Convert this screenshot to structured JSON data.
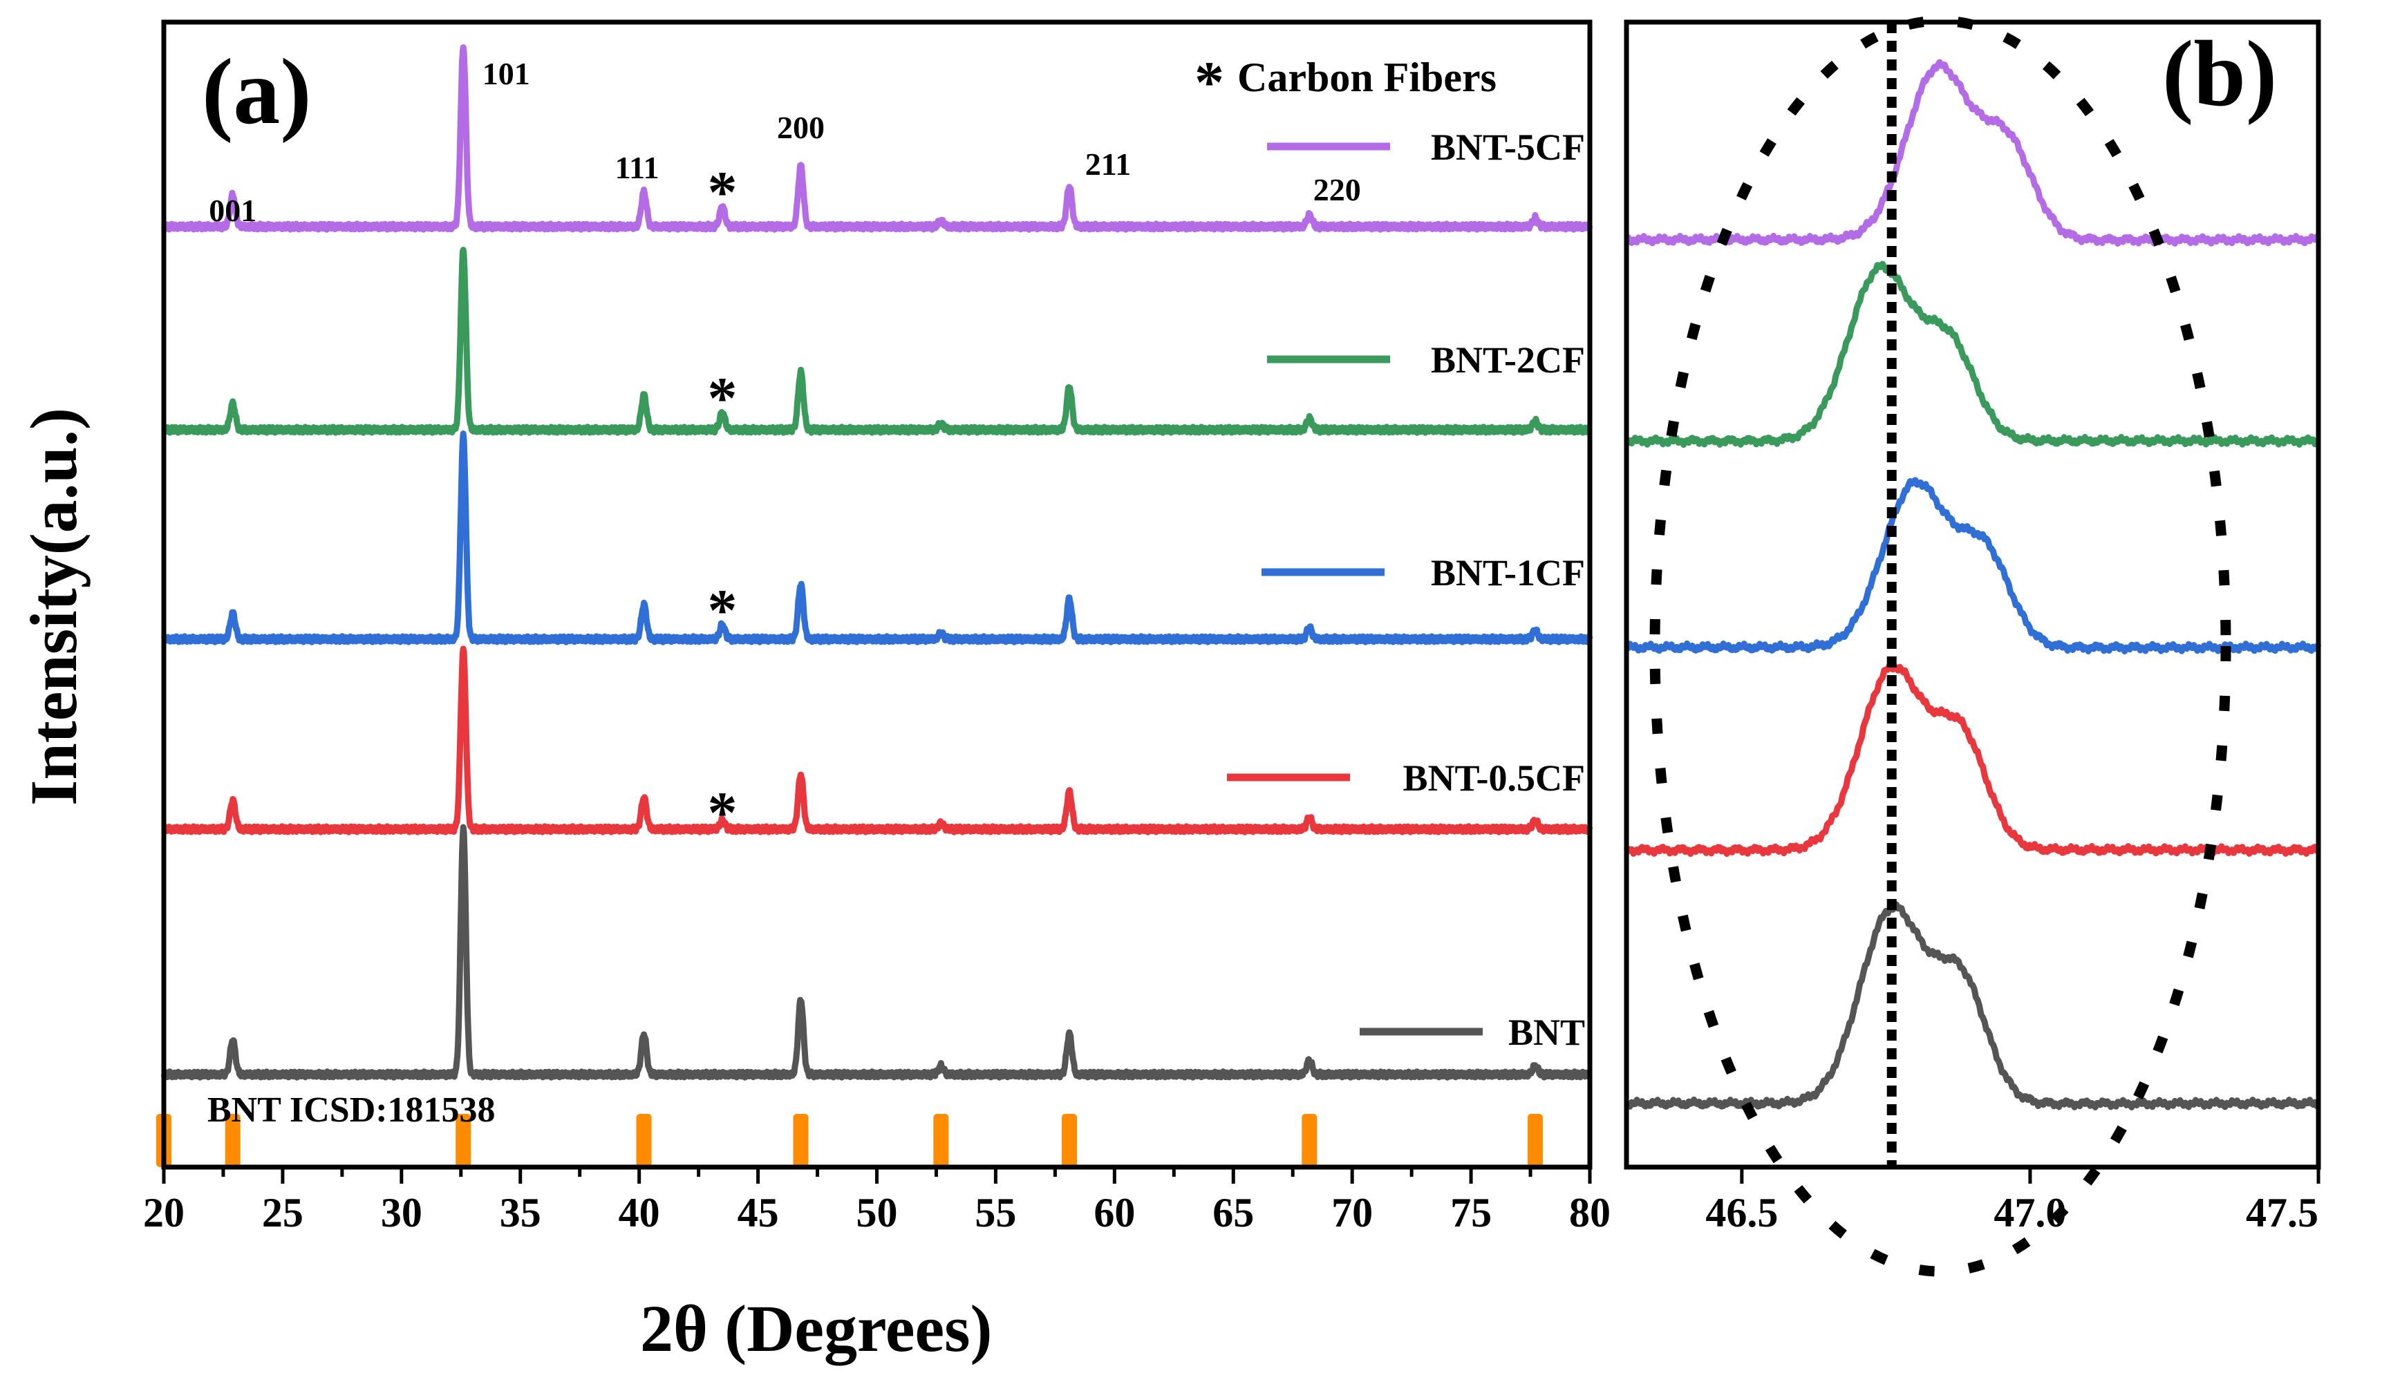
{
  "chart_data": [
    {
      "panel": "(a)",
      "type": "line",
      "xlabel": "2θ (Degrees)",
      "ylabel": "Intensity(a.u.)",
      "xlim": [
        20,
        80
      ],
      "xticks": [
        "20",
        "25",
        "30",
        "35",
        "40",
        "45",
        "50",
        "55",
        "60",
        "65",
        "70",
        "75",
        "80"
      ],
      "legend_title": "Carbon Fibers",
      "legend_marker": "*",
      "reference_label": "BNT ICSD:181538",
      "reference_color": "#ff8c00",
      "reference_peaks": [
        20.0,
        22.9,
        32.6,
        40.2,
        46.8,
        52.7,
        58.1,
        68.2,
        77.7
      ],
      "peak_labels": [
        {
          "label": "001",
          "x": 22.9
        },
        {
          "label": "101",
          "x": 32.6
        },
        {
          "label": "111",
          "x": 40.2
        },
        {
          "label": "200",
          "x": 46.8
        },
        {
          "label": "211",
          "x": 58.1
        },
        {
          "label": "220",
          "x": 68.2
        }
      ],
      "star_marker": "*",
      "star_positions_deg": [
        43.5
      ],
      "series": [
        {
          "name": "BNT",
          "color": "#555555",
          "baseline": 0.0,
          "peaks": [
            [
              22.9,
              0.12
            ],
            [
              32.6,
              0.85
            ],
            [
              40.2,
              0.14
            ],
            [
              46.8,
              0.26
            ],
            [
              52.7,
              0.03
            ],
            [
              58.1,
              0.14
            ],
            [
              68.2,
              0.05
            ],
            [
              77.7,
              0.03
            ]
          ]
        },
        {
          "name": "BNT-0.5CF",
          "color": "#e8383d",
          "baseline": 1.0,
          "peaks": [
            [
              22.9,
              0.1
            ],
            [
              32.6,
              0.62
            ],
            [
              40.2,
              0.11
            ],
            [
              43.5,
              0.03
            ],
            [
              46.8,
              0.19
            ],
            [
              52.7,
              0.02
            ],
            [
              58.1,
              0.13
            ],
            [
              68.2,
              0.04
            ],
            [
              77.7,
              0.03
            ]
          ]
        },
        {
          "name": "BNT-1CF",
          "color": "#2f6fd6",
          "baseline": 2.0,
          "peaks": [
            [
              22.9,
              0.09
            ],
            [
              32.6,
              0.7
            ],
            [
              40.2,
              0.12
            ],
            [
              43.5,
              0.05
            ],
            [
              46.8,
              0.19
            ],
            [
              52.7,
              0.02
            ],
            [
              58.1,
              0.14
            ],
            [
              68.2,
              0.04
            ],
            [
              77.7,
              0.03
            ]
          ]
        },
        {
          "name": "BNT-2CF",
          "color": "#3a9a5b",
          "baseline": 3.0,
          "peaks": [
            [
              22.9,
              0.09
            ],
            [
              32.6,
              0.62
            ],
            [
              40.2,
              0.12
            ],
            [
              43.5,
              0.06
            ],
            [
              46.8,
              0.2
            ],
            [
              52.7,
              0.02
            ],
            [
              58.1,
              0.15
            ],
            [
              68.2,
              0.04
            ],
            [
              77.7,
              0.03
            ]
          ]
        },
        {
          "name": "BNT-5CF",
          "color": "#b36be6",
          "baseline": 4.0,
          "peaks": [
            [
              22.9,
              0.11
            ],
            [
              32.6,
              0.62
            ],
            [
              40.2,
              0.12
            ],
            [
              43.5,
              0.07
            ],
            [
              46.8,
              0.21
            ],
            [
              52.7,
              0.02
            ],
            [
              58.1,
              0.14
            ],
            [
              68.2,
              0.04
            ],
            [
              77.7,
              0.03
            ]
          ]
        }
      ]
    },
    {
      "panel": "(b)",
      "type": "line",
      "xlim": [
        46.3,
        47.5
      ],
      "xticks": [
        "46.5",
        "47.0",
        "47.5"
      ],
      "dashed_reference_x": 46.76,
      "series": [
        {
          "name": "BNT",
          "color": "#555555",
          "baseline": 0.0,
          "main_peak": [
            46.76,
            0.45
          ],
          "shoulder": [
            46.88,
            0.28
          ]
        },
        {
          "name": "BNT-0.5CF",
          "color": "#e8383d",
          "baseline": 1.0,
          "main_peak": [
            46.76,
            0.42
          ],
          "shoulder": [
            46.88,
            0.26
          ]
        },
        {
          "name": "BNT-1CF",
          "color": "#2f6fd6",
          "baseline": 2.0,
          "main_peak": [
            46.8,
            0.38
          ],
          "shoulder": [
            46.92,
            0.22
          ]
        },
        {
          "name": "BNT-2CF",
          "color": "#3a9a5b",
          "baseline": 3.0,
          "main_peak": [
            46.74,
            0.4
          ],
          "shoulder": [
            46.86,
            0.22
          ]
        },
        {
          "name": "BNT-5CF",
          "color": "#b36be6",
          "baseline": 4.0,
          "main_peak": [
            46.84,
            0.4
          ],
          "shoulder": [
            46.96,
            0.22
          ]
        }
      ]
    }
  ]
}
